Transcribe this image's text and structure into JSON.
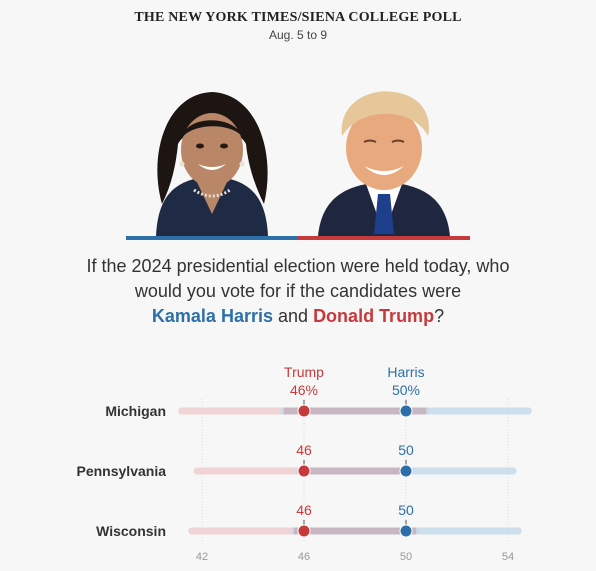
{
  "header": {
    "title": "THE NEW YORK TIMES/SIENA COLLEGE POLL",
    "dates": "Aug. 5 to 9"
  },
  "question": {
    "line1": "If the 2024 presidential election were held today, who",
    "line2": "would you vote for if the candidates were",
    "harris": "Kamala Harris",
    "and": "and",
    "trump": "Donald Trump",
    "end": "?"
  },
  "colors": {
    "harris": "#2d6fa8",
    "trump": "#c8393c",
    "harris_light": "#c6dbeb",
    "trump_light": "#f0d4d5",
    "overlap": "#c9b6c3"
  },
  "chart_data": {
    "type": "dot-range",
    "xlim": [
      41,
      54.5
    ],
    "x_ticks": [
      42,
      46,
      50,
      54
    ],
    "series": [
      {
        "name": "Trump",
        "color": "#c8393c"
      },
      {
        "name": "Harris",
        "color": "#2d6fa8"
      }
    ],
    "rows": [
      {
        "state": "Michigan",
        "trump": 46,
        "harris": 50,
        "trump_label": "46%",
        "harris_label": "50%",
        "trump_range": [
          41.2,
          50.8
        ],
        "harris_range": [
          45.2,
          54.8
        ]
      },
      {
        "state": "Pennsylvania",
        "trump": 46,
        "harris": 50,
        "trump_label": "46",
        "harris_label": "50",
        "trump_range": [
          41.8,
          50.2
        ],
        "harris_range": [
          45.8,
          54.2
        ]
      },
      {
        "state": "Wisconsin",
        "trump": 46,
        "harris": 50,
        "trump_label": "46",
        "harris_label": "50",
        "trump_range": [
          41.6,
          50.4
        ],
        "harris_range": [
          45.6,
          54.4
        ]
      }
    ]
  }
}
